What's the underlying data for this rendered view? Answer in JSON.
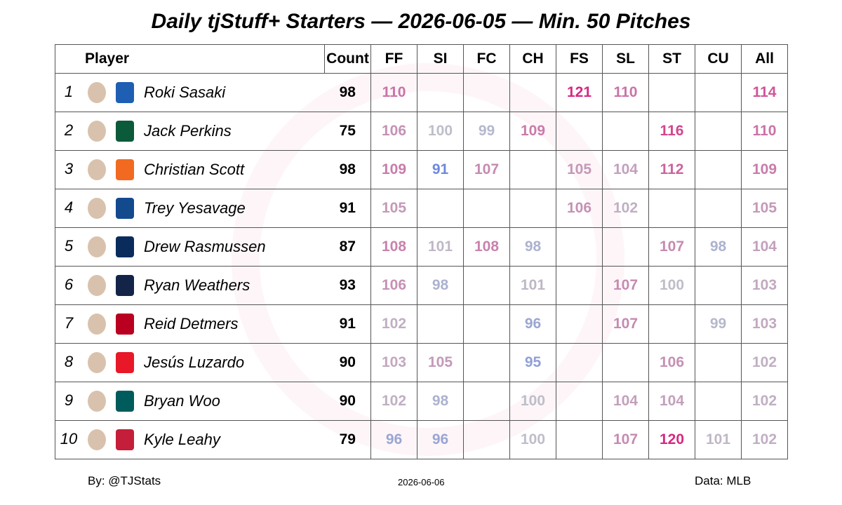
{
  "title": "Daily tjStuff+ Starters — 2026-06-05 — Min. 50 Pitches",
  "columns": [
    "Player",
    "Count",
    "FF",
    "SI",
    "FC",
    "CH",
    "FS",
    "SL",
    "ST",
    "CU",
    "All"
  ],
  "rows": [
    {
      "rank": 1,
      "player": "Roki Sasaki",
      "count": 98,
      "values": [
        110,
        null,
        null,
        null,
        121,
        110,
        null,
        null,
        114
      ]
    },
    {
      "rank": 2,
      "player": "Jack Perkins",
      "count": 75,
      "values": [
        106,
        100,
        99,
        109,
        null,
        null,
        116,
        null,
        110
      ]
    },
    {
      "rank": 3,
      "player": "Christian Scott",
      "count": 98,
      "values": [
        109,
        91,
        107,
        null,
        105,
        104,
        112,
        null,
        109
      ]
    },
    {
      "rank": 4,
      "player": "Trey Yesavage",
      "count": 91,
      "values": [
        105,
        null,
        null,
        null,
        106,
        102,
        null,
        null,
        105
      ]
    },
    {
      "rank": 5,
      "player": "Drew Rasmussen",
      "count": 87,
      "values": [
        108,
        101,
        108,
        98,
        null,
        null,
        107,
        98,
        104
      ]
    },
    {
      "rank": 6,
      "player": "Ryan Weathers",
      "count": 93,
      "values": [
        106,
        98,
        null,
        101,
        null,
        107,
        100,
        null,
        103
      ]
    },
    {
      "rank": 7,
      "player": "Reid Detmers",
      "count": 91,
      "values": [
        102,
        null,
        null,
        96,
        null,
        107,
        null,
        99,
        103
      ]
    },
    {
      "rank": 8,
      "player": "Jesús Luzardo",
      "count": 90,
      "values": [
        103,
        105,
        null,
        95,
        null,
        null,
        106,
        null,
        102
      ]
    },
    {
      "rank": 9,
      "player": "Bryan Woo",
      "count": 90,
      "values": [
        102,
        98,
        null,
        100,
        null,
        104,
        104,
        null,
        102
      ]
    },
    {
      "rank": 10,
      "player": "Kyle Leahy",
      "count": 79,
      "values": [
        96,
        96,
        null,
        100,
        null,
        107,
        120,
        101,
        102
      ]
    }
  ],
  "footer": {
    "credit": "By: @TJStats",
    "date": "2026-06-06",
    "source": "Data: MLB"
  }
}
